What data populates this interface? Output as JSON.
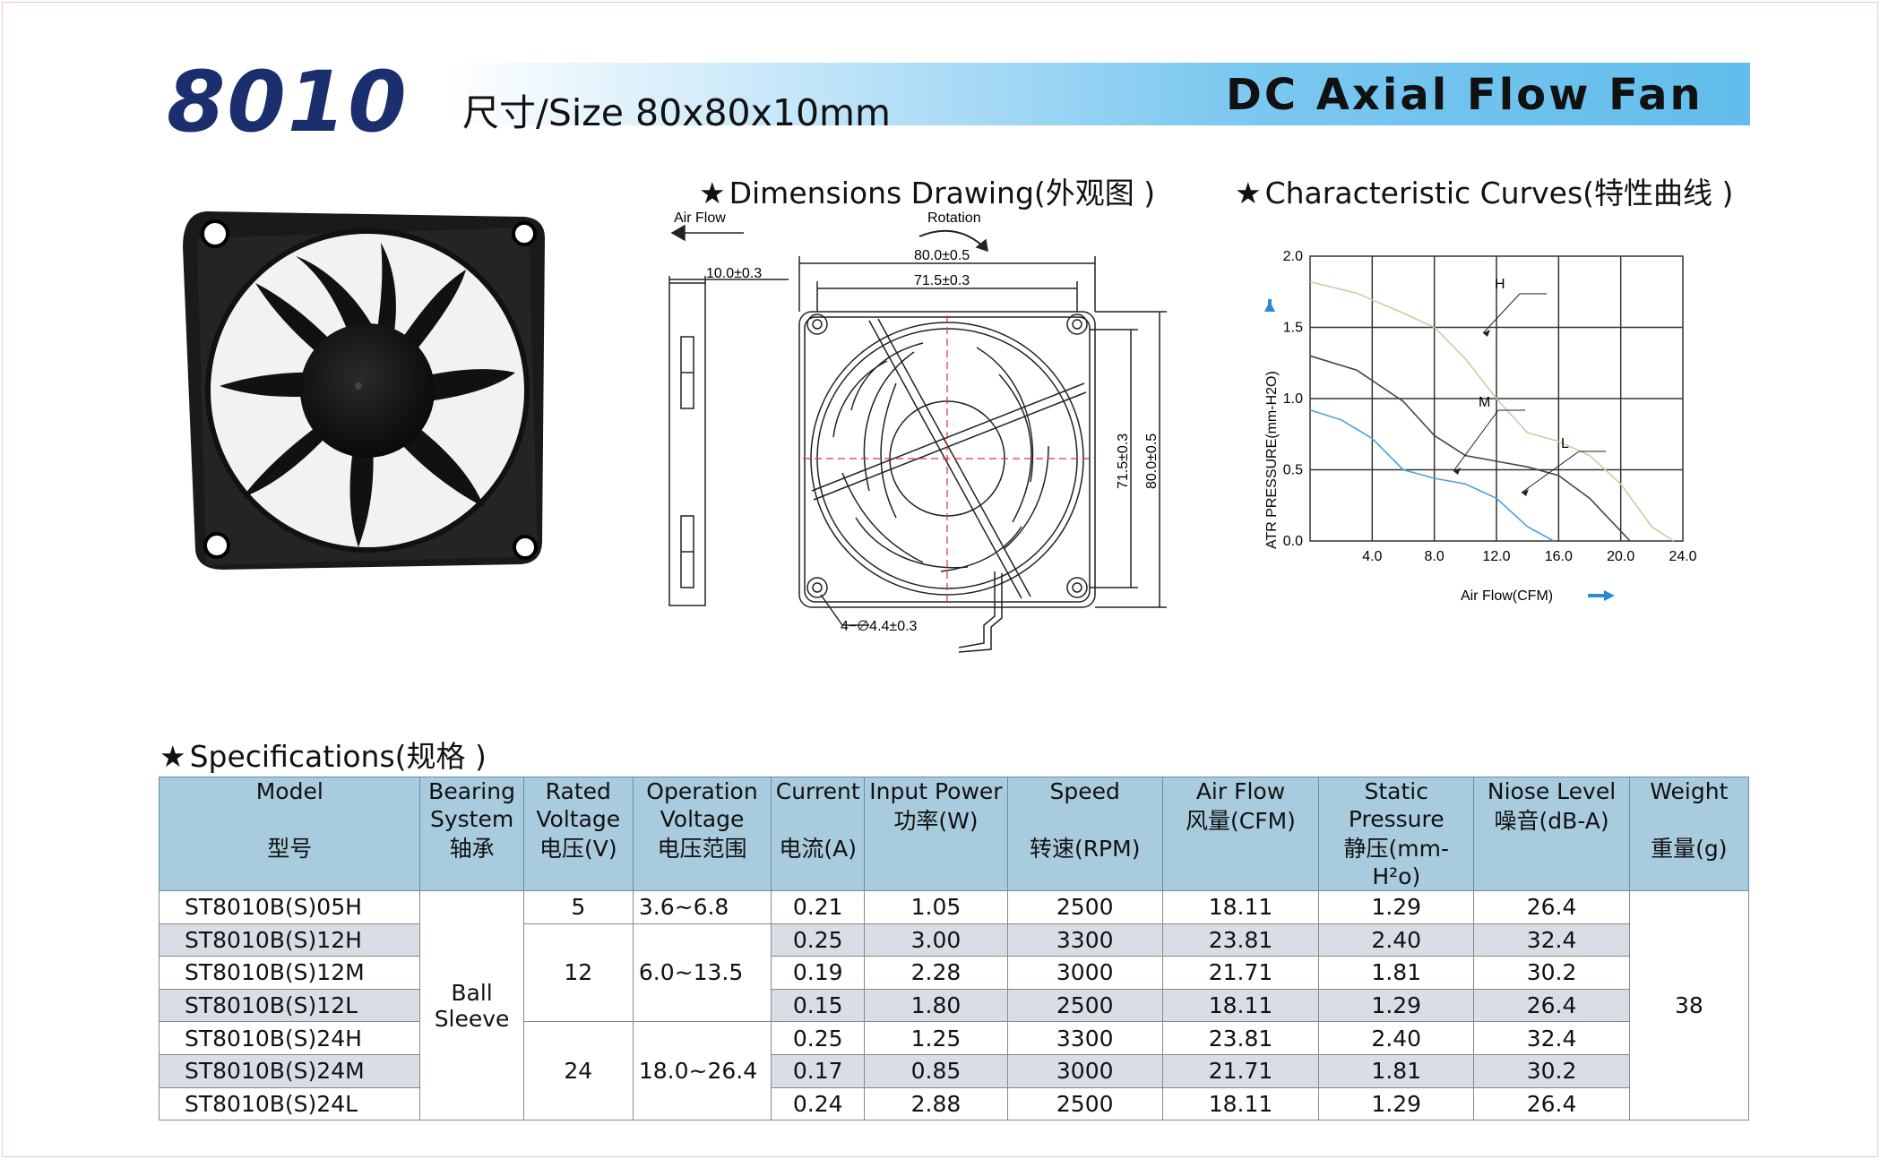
{
  "header": {
    "model": "8010",
    "size_label": "尺寸/Size 80x80x10mm",
    "title": "DC Axial Flow Fan"
  },
  "sections": {
    "dimensions": "Dimensions Drawing(外观图 )",
    "curves": "Characteristic Curves(特性曲线 )",
    "specs": "Specifications(规格 )",
    "star": "★"
  },
  "drawing": {
    "air_flow": "Air Flow",
    "rotation": "Rotation",
    "thickness": "10.0±0.3",
    "outer_width": "80.0±0.5",
    "hole_spacing": "71.5±0.3",
    "hole_spacing_v": "71.5±0.3",
    "outer_height_v": "80.0±0.5",
    "holes": "4−∅4.4±0.3"
  },
  "chart_data": {
    "type": "line",
    "title": "Characteristic Curves(特性曲线 )",
    "xlabel": "Air Flow(CFM)",
    "ylabel": "ATR PRESSURE(mm-H2O)",
    "xlim": [
      0,
      24
    ],
    "ylim": [
      0,
      2.0
    ],
    "x_ticks": [
      "4.0",
      "8.0",
      "12.0",
      "16.0",
      "20.0",
      "24.0"
    ],
    "y_ticks": [
      "0.0",
      "0.5",
      "1.0",
      "1.5",
      "2.0"
    ],
    "grid": true,
    "series": [
      {
        "name": "H",
        "color": "#c8cfa0",
        "x": [
          0,
          3,
          6,
          8,
          10,
          12,
          14,
          16,
          18,
          20,
          22,
          23.4
        ],
        "y": [
          1.82,
          1.74,
          1.6,
          1.5,
          1.28,
          1.0,
          0.76,
          0.7,
          0.6,
          0.4,
          0.1,
          0.0
        ]
      },
      {
        "name": "M",
        "color": "#444444",
        "x": [
          0,
          3,
          6,
          8,
          10,
          12,
          14,
          16,
          18,
          20.6
        ],
        "y": [
          1.3,
          1.2,
          0.98,
          0.74,
          0.6,
          0.56,
          0.52,
          0.46,
          0.3,
          0.0
        ]
      },
      {
        "name": "L",
        "color": "#4aa0d8",
        "x": [
          0,
          2,
          4,
          6,
          8,
          10,
          12,
          14,
          15.7
        ],
        "y": [
          0.92,
          0.85,
          0.72,
          0.5,
          0.44,
          0.4,
          0.3,
          0.1,
          0.0
        ]
      }
    ]
  },
  "specs": {
    "headers": [
      {
        "en": "Model",
        "cn": "型号"
      },
      {
        "en": "Bearing System",
        "cn": "轴承"
      },
      {
        "en": "Rated Voltage",
        "cn": "电压(V)"
      },
      {
        "en": "Operation Voltage",
        "cn": "电压范围"
      },
      {
        "en": "Current",
        "cn": "电流(A)"
      },
      {
        "en": "Input Power",
        "cn": "功率(W)"
      },
      {
        "en": "Speed",
        "cn": "转速(RPM)"
      },
      {
        "en": "Air Flow",
        "cn": "风量(CFM)"
      },
      {
        "en": "Static Pressure",
        "cn": "静压(mm-H²o)"
      },
      {
        "en": "Niose Level",
        "cn": "噪音(dB-A)"
      },
      {
        "en": "Weight",
        "cn": "重量(g)"
      }
    ],
    "bearing": [
      "Ball",
      "Sleeve"
    ],
    "weight": "38",
    "rows": [
      {
        "model": "ST8010B(S)05H",
        "current": "0.21",
        "power": "1.05",
        "speed": "2500",
        "airflow": "18.11",
        "pressure": "1.29",
        "noise": "26.4"
      },
      {
        "model": "ST8010B(S)12H",
        "current": "0.25",
        "power": "3.00",
        "speed": "3300",
        "airflow": "23.81",
        "pressure": "2.40",
        "noise": "32.4"
      },
      {
        "model": "ST8010B(S)12M",
        "current": "0.19",
        "power": "2.28",
        "speed": "3000",
        "airflow": "21.71",
        "pressure": "1.81",
        "noise": "30.2"
      },
      {
        "model": "ST8010B(S)12L",
        "current": "0.15",
        "power": "1.80",
        "speed": "2500",
        "airflow": "18.11",
        "pressure": "1.29",
        "noise": "26.4"
      },
      {
        "model": "ST8010B(S)24H",
        "current": "0.25",
        "power": "1.25",
        "speed": "3300",
        "airflow": "23.81",
        "pressure": "2.40",
        "noise": "32.4"
      },
      {
        "model": "ST8010B(S)24M",
        "current": "0.17",
        "power": "0.85",
        "speed": "3000",
        "airflow": "21.71",
        "pressure": "1.81",
        "noise": "30.2"
      },
      {
        "model": "ST8010B(S)24L",
        "current": "0.24",
        "power": "2.88",
        "speed": "2500",
        "airflow": "18.11",
        "pressure": "1.29",
        "noise": "26.4"
      }
    ],
    "voltage_groups": [
      {
        "rated": "5",
        "range": "3.6~6.8"
      },
      {
        "rated": "12",
        "range": "6.0~13.5"
      },
      {
        "rated": "24",
        "range": "18.0~26.4"
      }
    ]
  }
}
